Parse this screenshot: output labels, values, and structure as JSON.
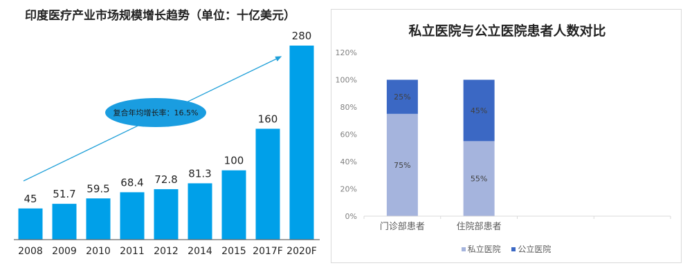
{
  "chart_data": [
    {
      "type": "bar",
      "title": "印度医疗产业市场规模增长趋势（单位：十亿美元）",
      "xlabel": "",
      "ylabel": "",
      "categories": [
        "2008",
        "2009",
        "2010",
        "2011",
        "2012",
        "2014",
        "2015",
        "2017F",
        "2020F"
      ],
      "values": [
        45,
        51.7,
        59.5,
        68.4,
        72.8,
        81.3,
        100,
        160,
        280
      ],
      "data_labels": [
        "45",
        "51.7",
        "59.5",
        "68.4",
        "72.8",
        "81.3",
        "100",
        "160",
        "280"
      ],
      "ylim": [
        0,
        280
      ],
      "grid": false,
      "bar_color": "#00a0e9",
      "annotation": {
        "type": "trend-arrow",
        "label": "复合年均增长率：16.5%",
        "color": "#1e9fd8"
      }
    },
    {
      "type": "bar",
      "stacked": true,
      "title": "私立医院与公立医院患者人数对比",
      "xlabel": "",
      "ylabel": "",
      "categories": [
        "门诊部患者",
        "住院部患者",
        "",
        ""
      ],
      "series": [
        {
          "name": "私立医院",
          "values": [
            75,
            55,
            null,
            null
          ],
          "labels": [
            "75%",
            "55%"
          ],
          "color": "#a5b4dd"
        },
        {
          "name": "公立医院",
          "values": [
            25,
            45,
            null,
            null
          ],
          "labels": [
            "25%",
            "45%"
          ],
          "color": "#3b68c4"
        }
      ],
      "yticks": [
        "0%",
        "20%",
        "40%",
        "60%",
        "80%",
        "100%",
        "120%"
      ],
      "ytick_values": [
        0,
        20,
        40,
        60,
        80,
        100,
        120
      ],
      "ylim": [
        0,
        120
      ],
      "grid": false,
      "legend_position": "bottom"
    }
  ]
}
